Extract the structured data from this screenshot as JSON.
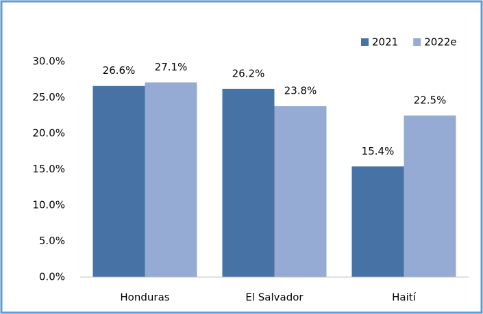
{
  "chart_data": {
    "type": "bar",
    "categories": [
      "Honduras",
      "El Salvador",
      "Haití"
    ],
    "series": [
      {
        "name": "2021",
        "color": "#4672a6",
        "values": [
          26.6,
          26.2,
          15.4
        ],
        "value_labels": [
          "26.6%",
          "26.2%",
          "15.4%"
        ]
      },
      {
        "name": "2022e",
        "color": "#95abd3",
        "values": [
          27.1,
          23.8,
          22.5
        ],
        "value_labels": [
          "27.1%",
          "23.8%",
          "22.5%"
        ]
      }
    ],
    "ylim": [
      0,
      30
    ],
    "yticks": [
      {
        "value": 0,
        "label": "0.0%"
      },
      {
        "value": 5,
        "label": "5.0%"
      },
      {
        "value": 10,
        "label": "10.0%"
      },
      {
        "value": 15,
        "label": "15.0%"
      },
      {
        "value": 20,
        "label": "20.0%"
      },
      {
        "value": 25,
        "label": "25.0%"
      },
      {
        "value": 30,
        "label": "30.0%"
      }
    ],
    "grid": false,
    "legend": "top-right"
  }
}
